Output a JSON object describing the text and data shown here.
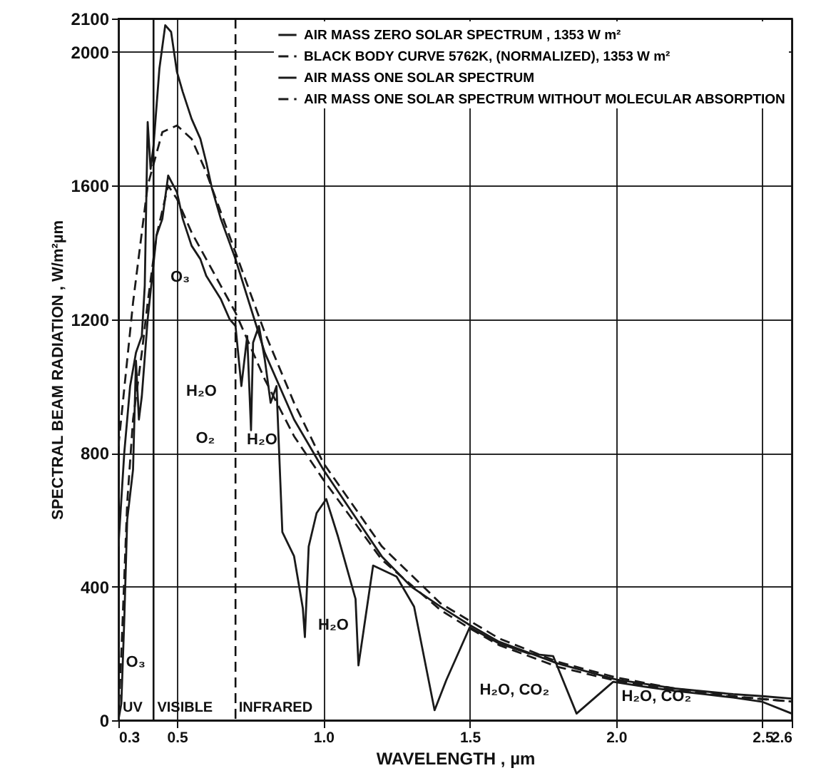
{
  "chart_data": {
    "type": "line",
    "xlabel": "WAVELENGTH ,  µm",
    "ylabel": "SPECTRAL BEAM RADIATION , W/m²µm",
    "xlim": [
      0.3,
      2.6
    ],
    "xticks": [
      0.3,
      0.5,
      {
        "value": 1,
        "label": "1.0"
      },
      1.5,
      {
        "value": 2,
        "label": "2.0"
      },
      2.5,
      2.6
    ],
    "ylim": [
      0,
      2100
    ],
    "yticks": [
      0,
      400,
      800,
      1200,
      1600,
      2000,
      2100
    ],
    "grid": true,
    "legend": "top right",
    "series": [
      {
        "name": "AIR MASS ZERO SOLAR SPECTRUM , 1353 W m²",
        "color": "#1a1a1a",
        "line_style": "solid",
        "x": [
          0.3,
          0.32,
          0.34,
          0.36,
          0.38,
          0.39,
          0.4,
          0.41,
          0.42,
          0.44,
          0.46,
          0.48,
          0.5,
          0.52,
          0.55,
          0.58,
          0.6,
          0.62,
          0.65,
          0.7,
          0.75,
          0.8,
          0.9,
          1.0,
          1.1,
          1.2,
          1.3,
          1.4,
          1.5,
          1.6,
          1.8,
          2.0,
          2.2,
          2.4,
          2.5,
          2.6
        ],
        "values": [
          520,
          800,
          1000,
          1100,
          1150,
          1300,
          1790,
          1650,
          1720,
          1950,
          2080,
          2060,
          1940,
          1880,
          1800,
          1740,
          1670,
          1590,
          1500,
          1380,
          1240,
          1100,
          900,
          750,
          620,
          490,
          400,
          340,
          285,
          235,
          170,
          122,
          95,
          78,
          72,
          65
        ]
      },
      {
        "name": "BLACK BODY CURVE 5762K, (NORMALIZED), 1353 W m²",
        "color": "#1a1a1a",
        "line_style": "dashed",
        "x": [
          0.3,
          0.35,
          0.4,
          0.45,
          0.5,
          0.55,
          0.6,
          0.7,
          0.8,
          0.9,
          1.0,
          1.2,
          1.4,
          1.6,
          1.8,
          2.0,
          2.2,
          2.4,
          2.6
        ],
        "values": [
          820,
          1250,
          1600,
          1760,
          1780,
          1740,
          1640,
          1400,
          1160,
          950,
          770,
          520,
          350,
          245,
          175,
          128,
          95,
          72,
          56
        ]
      },
      {
        "name": "AIR MASS ONE SOLAR SPECTRUM",
        "color": "#1a1a1a",
        "line_style": "solid",
        "x": [
          0.3,
          0.31,
          0.32,
          0.33,
          0.35,
          0.36,
          0.37,
          0.38,
          0.4,
          0.43,
          0.45,
          0.47,
          0.5,
          0.52,
          0.55,
          0.58,
          0.6,
          0.65,
          0.68,
          0.7,
          0.72,
          0.74,
          0.753,
          0.76,
          0.78,
          0.8,
          0.82,
          0.84,
          0.86,
          0.9,
          0.93,
          0.937,
          0.95,
          0.977,
          1.01,
          1.05,
          1.11,
          1.12,
          1.17,
          1.25,
          1.31,
          1.38,
          1.42,
          1.5,
          1.6,
          1.7,
          1.785,
          1.865,
          1.99,
          2.1,
          2.2,
          2.3,
          2.4,
          2.5,
          2.6
        ],
        "values": [
          0,
          50,
          300,
          600,
          750,
          1076,
          900,
          970,
          1200,
          1450,
          1500,
          1630,
          1580,
          1500,
          1420,
          1380,
          1330,
          1260,
          1200,
          1180,
          1000,
          1150,
          868,
          1130,
          1180,
          1080,
          950,
          1000,
          563,
          491,
          335,
          249,
          520,
          620,
          662,
          550,
          363,
          164,
          463,
          430,
          340,
          30,
          120,
          278,
          230,
          200,
          192,
          20,
          115,
          100,
          88,
          78,
          68,
          55,
          20
        ]
      },
      {
        "name": "AIR MASS ONE SOLAR SPECTRUM WITHOUT MOLECULAR ABSORPTION",
        "color": "#1a1a1a",
        "line_style": "dashed",
        "x": [
          0.3,
          0.31,
          0.33,
          0.35,
          0.38,
          0.4,
          0.43,
          0.47,
          0.5,
          0.55,
          0.6,
          0.65,
          0.7,
          0.75,
          0.8,
          0.9,
          1.0,
          1.2,
          1.4,
          1.5,
          1.6,
          1.8,
          2.0,
          2.2,
          2.4,
          2.6
        ],
        "values": [
          0,
          200,
          650,
          900,
          1100,
          1250,
          1450,
          1600,
          1560,
          1460,
          1380,
          1300,
          1220,
          1120,
          1020,
          850,
          720,
          480,
          330,
          275,
          225,
          160,
          118,
          90,
          70,
          56
        ]
      }
    ],
    "ref_lines": [
      {
        "axis": "x",
        "value": 0.42,
        "line_style": "solid"
      },
      {
        "axis": "x",
        "value": 0.7,
        "line_style": "dashed"
      }
    ],
    "annotations": [
      {
        "text": "O₃",
        "x": 0.55,
        "y": 1420
      },
      {
        "text": "O₃",
        "x": 0.32,
        "y": 300
      },
      {
        "text": "H₂O",
        "x": 0.72,
        "y": 1000
      },
      {
        "text": "O₂",
        "x": 0.753,
        "y": 868
      },
      {
        "text": "H₂O",
        "x": 0.82,
        "y": 950
      },
      {
        "text": "H₂O",
        "x": 0.937,
        "y": 249
      },
      {
        "text": "H₂O, CO₂",
        "x": 1.38,
        "y": 30
      },
      {
        "text": "H₂O, CO₂",
        "x": 1.865,
        "y": 20
      },
      "UV",
      "VISIBLE",
      "INFRARED"
    ]
  }
}
